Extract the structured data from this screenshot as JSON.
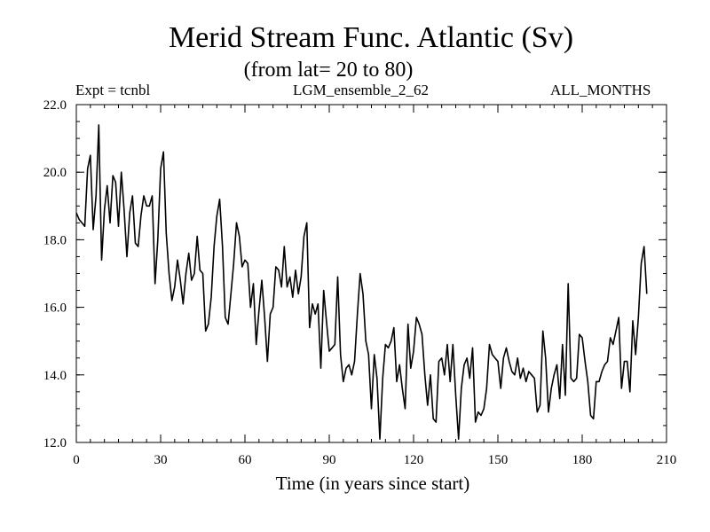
{
  "chart_data": {
    "type": "line",
    "title": "Merid Stream Func. Atlantic (Sv)",
    "subtitle": "(from lat= 20 to 80)",
    "header": {
      "left": "Expt = tcnbl",
      "center": "LGM_ensemble_2_62",
      "right": "ALL_MONTHS"
    },
    "xlabel": "Time (in years since start)",
    "ylabel": "",
    "xlim": [
      0,
      210
    ],
    "ylim": [
      12,
      22
    ],
    "x_ticks": [
      0,
      30,
      60,
      90,
      120,
      150,
      180,
      210
    ],
    "x_tick_labels": [
      "0",
      "30",
      "60",
      "90",
      "120",
      "150",
      "180",
      "210"
    ],
    "y_ticks": [
      12,
      14,
      16,
      18,
      20,
      22
    ],
    "y_tick_labels": [
      "12.0",
      "14.0",
      "16.0",
      "18.0",
      "20.0",
      "22.0"
    ],
    "x_minor_step": 5,
    "y_minor_step": 0.5,
    "grid": false,
    "series": [
      {
        "name": "Merid Stream Func. Atlantic",
        "color": "#000000",
        "x_start": 0,
        "x_step": 1,
        "values": [
          18.8,
          18.6,
          18.5,
          18.4,
          20.1,
          20.5,
          18.3,
          19.3,
          21.4,
          17.4,
          18.9,
          19.6,
          18.5,
          19.9,
          19.7,
          18.4,
          20.0,
          18.9,
          17.5,
          18.8,
          19.3,
          17.9,
          17.8,
          18.7,
          19.3,
          19.0,
          19.0,
          19.3,
          16.7,
          18.0,
          20.1,
          20.6,
          18.2,
          17.0,
          16.2,
          16.6,
          17.4,
          16.8,
          16.1,
          17.0,
          17.6,
          16.8,
          17.0,
          18.1,
          17.1,
          17.0,
          15.3,
          15.5,
          16.3,
          17.8,
          18.7,
          19.2,
          17.8,
          15.7,
          15.5,
          16.4,
          17.3,
          18.5,
          18.1,
          17.2,
          17.4,
          17.3,
          16.0,
          16.7,
          14.9,
          15.9,
          16.8,
          15.7,
          14.4,
          15.8,
          16.0,
          17.2,
          17.1,
          16.6,
          17.8,
          16.6,
          16.9,
          16.3,
          17.1,
          16.4,
          16.9,
          18.1,
          18.5,
          15.4,
          16.1,
          15.8,
          16.1,
          14.2,
          16.5,
          15.6,
          14.7,
          14.8,
          14.9,
          16.9,
          14.6,
          13.8,
          14.2,
          14.3,
          14.0,
          14.4,
          15.8,
          17.0,
          16.4,
          15.0,
          14.6,
          13.0,
          14.6,
          13.9,
          12.1,
          13.9,
          14.9,
          14.8,
          15.0,
          15.4,
          13.8,
          14.3,
          13.6,
          13.0,
          15.5,
          14.2,
          14.7,
          15.7,
          15.5,
          15.2,
          14.0,
          13.1,
          14.0,
          12.7,
          12.6,
          14.4,
          14.5,
          14.0,
          14.9,
          13.8,
          14.9,
          13.4,
          12.1,
          13.6,
          14.3,
          14.5,
          13.9,
          14.8,
          12.6,
          12.9,
          12.8,
          13.0,
          13.6,
          14.9,
          14.6,
          14.5,
          14.4,
          13.6,
          14.5,
          14.8,
          14.4,
          14.1,
          14.0,
          14.5,
          13.9,
          14.2,
          13.8,
          14.1,
          14.0,
          13.9,
          12.9,
          13.1,
          15.3,
          14.5,
          12.9,
          13.6,
          14.0,
          14.3,
          13.3,
          14.9,
          13.4,
          16.7,
          13.9,
          13.8,
          13.9,
          15.2,
          15.1,
          14.4,
          13.8,
          12.8,
          12.7,
          13.8,
          13.8,
          14.1,
          14.3,
          14.4,
          15.1,
          14.9,
          15.3,
          15.7,
          13.6,
          14.4,
          14.4,
          13.5,
          15.6,
          14.6,
          15.7,
          17.3,
          17.8,
          16.4
        ]
      }
    ]
  }
}
